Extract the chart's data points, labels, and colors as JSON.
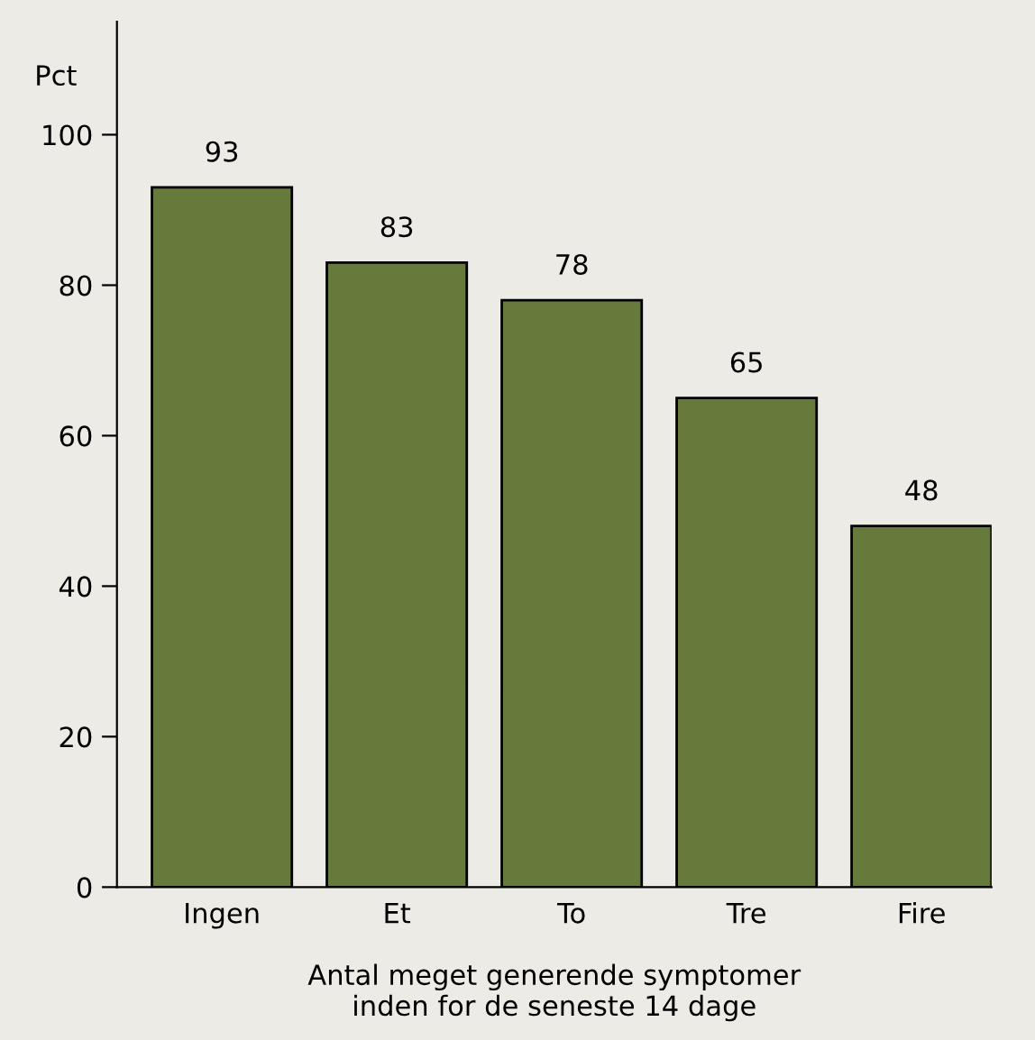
{
  "chart_data": {
    "type": "bar",
    "ylabel": "Pct",
    "xlabel": "Antal meget generende symptomer\ninden for de seneste 14 dage",
    "categories": [
      "Ingen",
      "Et",
      "To",
      "Tre",
      "Fire"
    ],
    "values": [
      93,
      83,
      78,
      65,
      48
    ],
    "color": "#667a3c",
    "data_labels": true,
    "ylim": [
      0,
      115
    ],
    "yticks": [
      0,
      20,
      40,
      60,
      80,
      100
    ],
    "grid": false,
    "legend": false
  }
}
